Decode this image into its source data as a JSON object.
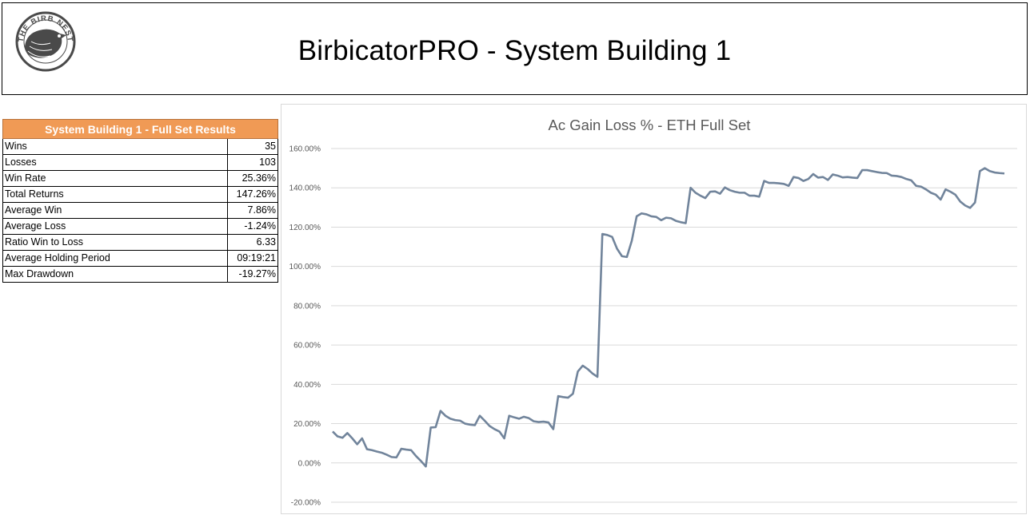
{
  "header": {
    "logo_text": "THE BIRB NEST",
    "title": "BirbicatorPRO - System Building 1"
  },
  "results": {
    "title": "System Building 1 - Full Set Results",
    "rows": [
      {
        "label": "Wins",
        "value": "35"
      },
      {
        "label": "Losses",
        "value": "103"
      },
      {
        "label": "Win Rate",
        "value": "25.36%"
      },
      {
        "label": "Total Returns",
        "value": "147.26%"
      },
      {
        "label": "Average Win",
        "value": "7.86%"
      },
      {
        "label": "Average Loss",
        "value": "-1.24%"
      },
      {
        "label": "Ratio Win to Loss",
        "value": "6.33"
      },
      {
        "label": "Average Holding Period",
        "value": "09:19:21"
      },
      {
        "label": "Max Drawdown",
        "value": "-19.27%"
      }
    ]
  },
  "colors": {
    "table_header": "#f09a55",
    "series_line": "#71849b",
    "gridline": "#d9d9d9",
    "axis_text": "#595959"
  },
  "chart_data": {
    "type": "line",
    "title": "Ac Gain Loss % - ETH Full Set",
    "xlabel": "",
    "ylabel": "",
    "ylim": [
      -20,
      160
    ],
    "yticks": [
      -20,
      0,
      20,
      40,
      60,
      80,
      100,
      120,
      140,
      160
    ],
    "ytick_labels": [
      "-20.00%",
      "0.00%",
      "20.00%",
      "40.00%",
      "60.00%",
      "80.00%",
      "100.00%",
      "120.00%",
      "140.00%",
      "160.00%"
    ],
    "grid": true,
    "legend": "none",
    "series": [
      {
        "values": [
          16.0,
          13.5,
          12.8,
          15.2,
          12.5,
          9.5,
          12.5,
          7.0,
          6.5,
          5.8,
          5.2,
          4.2,
          3.0,
          2.8,
          7.2,
          6.8,
          6.5,
          3.5,
          1.0,
          -1.8,
          18.0,
          18.2,
          26.5,
          24.0,
          22.5,
          21.8,
          21.5,
          20.0,
          19.5,
          19.2,
          24.0,
          21.5,
          18.8,
          17.2,
          16.0,
          12.5,
          24.0,
          23.2,
          22.5,
          23.5,
          22.8,
          21.2,
          20.8,
          21.0,
          20.6,
          17.2,
          34.0,
          33.5,
          33.2,
          35.2,
          46.5,
          49.5,
          47.8,
          45.5,
          43.8,
          116.5,
          116.0,
          115.0,
          109.0,
          105.2,
          104.8,
          113.0,
          125.5,
          127.0,
          126.5,
          125.5,
          125.2,
          123.5,
          124.8,
          124.5,
          123.2,
          122.5,
          122.0,
          140.0,
          137.5,
          136.0,
          134.8,
          138.0,
          138.2,
          137.0,
          140.2,
          138.8,
          138.0,
          137.5,
          137.5,
          136.0,
          136.0,
          135.5,
          143.5,
          142.5,
          142.5,
          142.3,
          142.0,
          141.0,
          145.5,
          145.0,
          143.5,
          144.5,
          147.0,
          145.2,
          145.5,
          144.0,
          146.8,
          146.2,
          145.3,
          145.5,
          145.2,
          145.0,
          149.0,
          149.0,
          148.5,
          148.0,
          147.6,
          147.5,
          146.2,
          146.0,
          145.5,
          144.5,
          143.8,
          141.0,
          140.6,
          139.2,
          137.5,
          136.5,
          134.0,
          139.2,
          138.0,
          136.5,
          133.0,
          131.0,
          129.8,
          132.5,
          148.5,
          150.0,
          148.5,
          147.8,
          147.5,
          147.3
        ]
      }
    ]
  }
}
